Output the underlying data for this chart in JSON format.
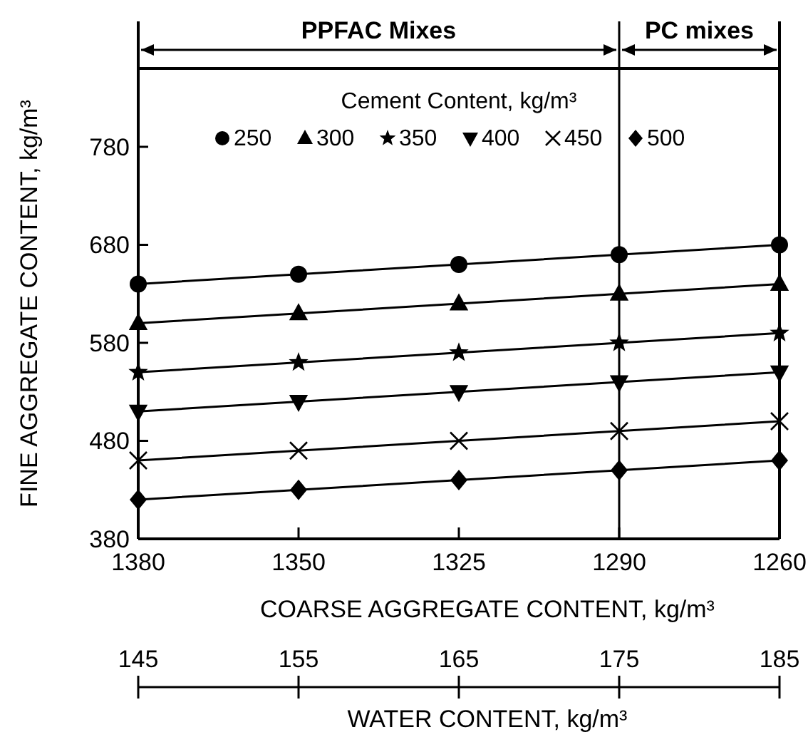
{
  "chart_data": {
    "type": "line",
    "xlabel": "COARSE AGGREGATE CONTENT, kg/m³",
    "ylabel": "FINE AGGREGATE CONTENT, kg/m³",
    "x2label": "WATER CONTENT, kg/m³",
    "legend_title": "Cement Content, kg/m³",
    "legend": "top",
    "categories": [
      "1380",
      "1350",
      "1325",
      "1290",
      "1260"
    ],
    "ylim": [
      380,
      860
    ],
    "yticks": [
      380,
      480,
      580,
      680,
      780
    ],
    "x2lim": [
      145,
      185
    ],
    "x2ticks": [
      145,
      155,
      165,
      175,
      185
    ],
    "grid": false,
    "line_style": "solid",
    "ref_lines": [
      {
        "axis": "x",
        "value": "1290"
      }
    ],
    "annotations": [
      "PPFAC Mixes",
      "PC mixes"
    ],
    "series": [
      {
        "name": "250",
        "color": "#000000",
        "marker": "circle",
        "values": [
          640,
          650,
          660,
          670,
          680
        ]
      },
      {
        "name": "300",
        "color": "#000000",
        "marker": "triangle",
        "values": [
          600,
          610,
          620,
          630,
          640
        ]
      },
      {
        "name": "350",
        "color": "#000000",
        "marker": "star",
        "values": [
          550,
          560,
          570,
          580,
          590
        ]
      },
      {
        "name": "400",
        "color": "#000000",
        "marker": "triangle-down",
        "values": [
          510,
          520,
          530,
          540,
          550
        ]
      },
      {
        "name": "450",
        "color": "#000000",
        "marker": "cross",
        "values": [
          460,
          470,
          480,
          490,
          500
        ]
      },
      {
        "name": "500",
        "color": "#000000",
        "marker": "diamond",
        "values": [
          420,
          430,
          440,
          450,
          460
        ]
      }
    ]
  }
}
